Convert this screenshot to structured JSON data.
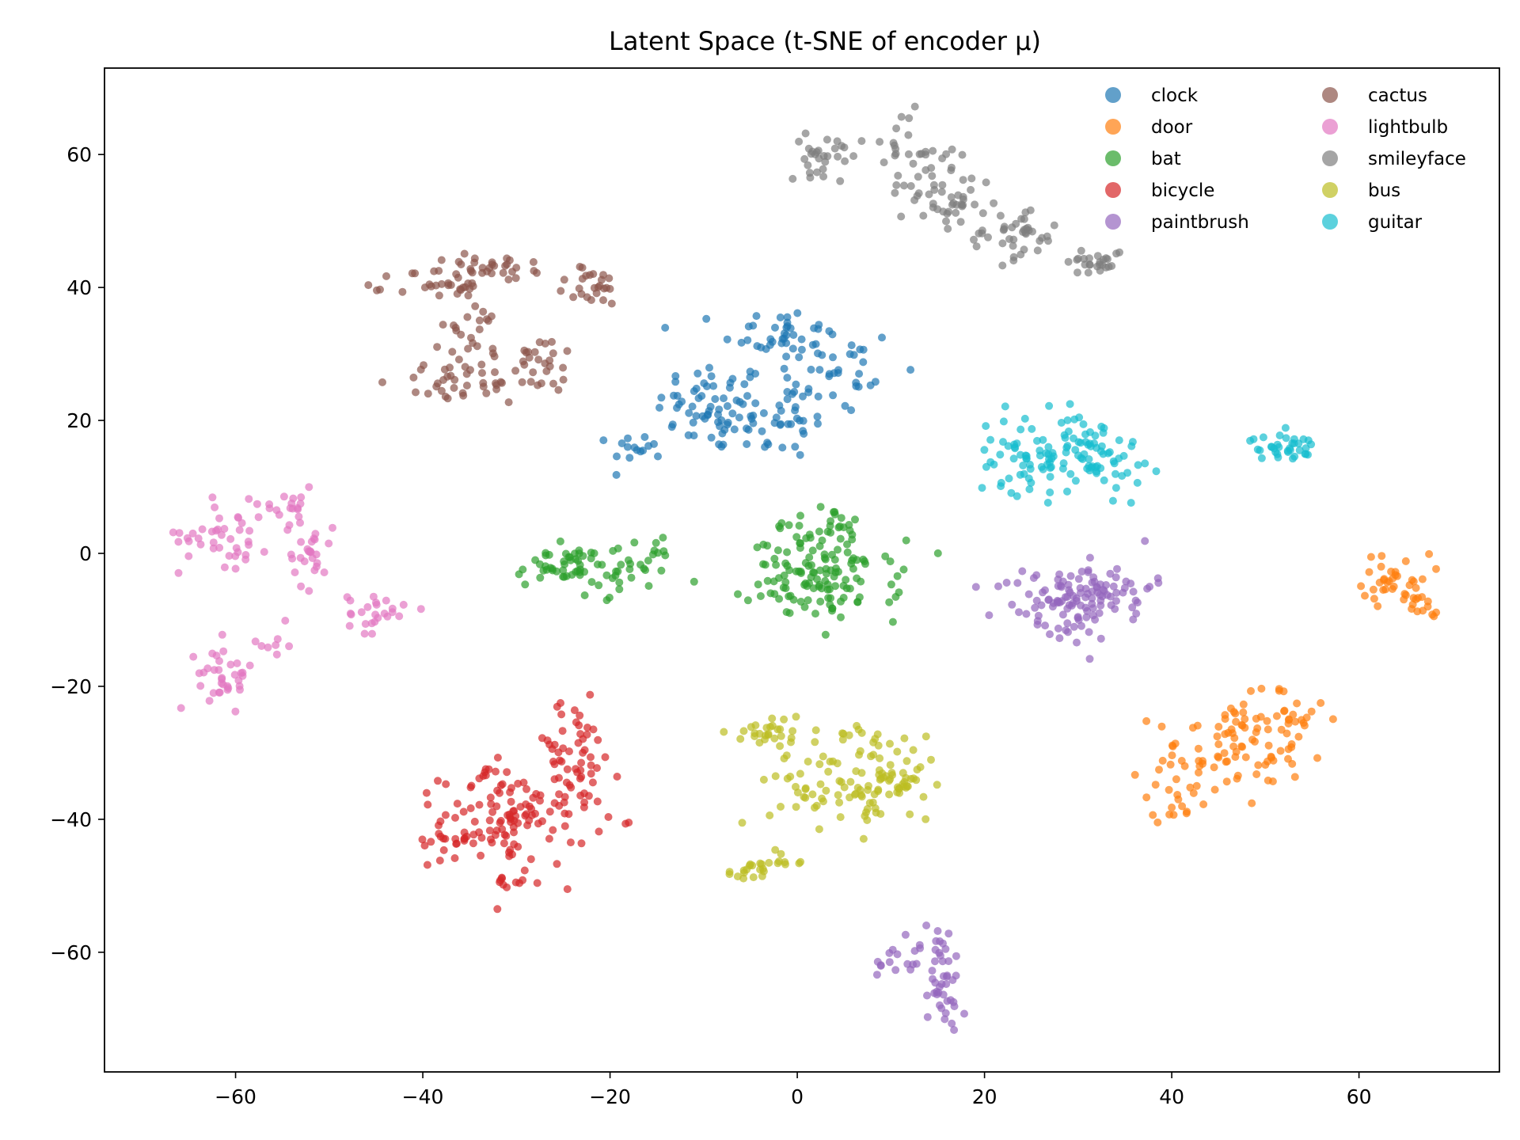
{
  "chart_data": {
    "type": "scatter",
    "title": "Latent Space (t-SNE of encoder μ)",
    "xlabel": "",
    "ylabel": "",
    "xlim": [
      -74,
      75
    ],
    "ylim": [
      -78,
      73
    ],
    "x_ticks": [
      -60,
      -40,
      -20,
      0,
      20,
      40,
      60
    ],
    "y_ticks": [
      -60,
      -40,
      -20,
      0,
      20,
      40,
      60
    ],
    "x_tick_labels": [
      "−60",
      "−40",
      "−20",
      "0",
      "20",
      "40",
      "60"
    ],
    "y_tick_labels": [
      "−60",
      "−40",
      "−20",
      "0",
      "20",
      "40",
      "60"
    ],
    "grid": false,
    "legend_position": "top-right",
    "legend_columns": 2,
    "series": [
      {
        "name": "clock",
        "color": "#1f77b4",
        "clusters": [
          {
            "x": -9,
            "y": 22,
            "sx": 3,
            "sy": 3.5,
            "n": 60
          },
          {
            "x": -2,
            "y": 33,
            "sx": 3,
            "sy": 2,
            "n": 40
          },
          {
            "x": 4,
            "y": 27,
            "sx": 3.5,
            "sy": 4,
            "n": 35
          },
          {
            "x": -2,
            "y": 20,
            "sx": 3,
            "sy": 3,
            "n": 40
          },
          {
            "x": -17,
            "y": 16,
            "sx": 1.5,
            "sy": 1,
            "n": 15
          }
        ]
      },
      {
        "name": "door",
        "color": "#ff7f0e",
        "clusters": [
          {
            "x": 46,
            "y": -30,
            "sx": 4,
            "sy": 4,
            "n": 80
          },
          {
            "x": 52,
            "y": -25,
            "sx": 2.5,
            "sy": 2.5,
            "n": 30
          },
          {
            "x": 40,
            "y": -37,
            "sx": 2,
            "sy": 1.5,
            "n": 15
          },
          {
            "x": 64,
            "y": -4,
            "sx": 1.8,
            "sy": 2,
            "n": 35
          },
          {
            "x": 66.5,
            "y": -8,
            "sx": 1,
            "sy": 1.2,
            "n": 12
          }
        ]
      },
      {
        "name": "bat",
        "color": "#2ca02c",
        "clusters": [
          {
            "x": -25,
            "y": -2,
            "sx": 2.5,
            "sy": 1.5,
            "n": 45
          },
          {
            "x": -18,
            "y": -2,
            "sx": 2.5,
            "sy": 2,
            "n": 35
          },
          {
            "x": 3,
            "y": -4,
            "sx": 4,
            "sy": 3,
            "n": 120
          },
          {
            "x": 2,
            "y": 4,
            "sx": 2.5,
            "sy": 1.5,
            "n": 30
          }
        ]
      },
      {
        "name": "bicycle",
        "color": "#d62728",
        "clusters": [
          {
            "x": -30,
            "y": -40,
            "sx": 4,
            "sy": 3.5,
            "n": 110
          },
          {
            "x": -24,
            "y": -30,
            "sx": 2.5,
            "sy": 4,
            "n": 50
          },
          {
            "x": -37,
            "y": -43,
            "sx": 1.2,
            "sy": 2,
            "n": 15
          },
          {
            "x": -30,
            "y": -49.5,
            "sx": 1.5,
            "sy": 0.3,
            "n": 10
          },
          {
            "x": -33,
            "y": -33,
            "sx": 1.2,
            "sy": 1,
            "n": 10
          }
        ]
      },
      {
        "name": "paintbrush",
        "color": "#9467bd",
        "clusters": [
          {
            "x": 28,
            "y": -8,
            "sx": 3.5,
            "sy": 3,
            "n": 80
          },
          {
            "x": 33,
            "y": -5,
            "sx": 2.5,
            "sy": 2,
            "n": 45
          },
          {
            "x": 15,
            "y": -62,
            "sx": 1.5,
            "sy": 3.5,
            "n": 40
          },
          {
            "x": 10,
            "y": -61.5,
            "sx": 0.8,
            "sy": 1.2,
            "n": 10
          },
          {
            "x": 16,
            "y": -69,
            "sx": 0.8,
            "sy": 1.5,
            "n": 10
          }
        ]
      },
      {
        "name": "cactus",
        "color": "#8c564b",
        "clusters": [
          {
            "x": -38,
            "y": 40,
            "sx": 2.5,
            "sy": 1.5,
            "n": 30
          },
          {
            "x": -32,
            "y": 43,
            "sx": 3,
            "sy": 1,
            "n": 30
          },
          {
            "x": -22,
            "y": 40,
            "sx": 2,
            "sy": 1.5,
            "n": 25
          },
          {
            "x": -37,
            "y": 26,
            "sx": 3,
            "sy": 1.5,
            "n": 25
          },
          {
            "x": -29,
            "y": 27,
            "sx": 3,
            "sy": 2,
            "n": 30
          },
          {
            "x": -35,
            "y": 33,
            "sx": 2,
            "sy": 2,
            "n": 20
          },
          {
            "x": -27,
            "y": 30,
            "sx": 1.5,
            "sy": 1.5,
            "n": 10
          }
        ]
      },
      {
        "name": "lightbulb",
        "color": "#e377c2",
        "clusters": [
          {
            "x": -61,
            "y": 3,
            "sx": 2.5,
            "sy": 2.5,
            "n": 40
          },
          {
            "x": -55,
            "y": 7,
            "sx": 2,
            "sy": 1.5,
            "n": 20
          },
          {
            "x": -52,
            "y": 0,
            "sx": 1.2,
            "sy": 2.5,
            "n": 25
          },
          {
            "x": -45,
            "y": -9,
            "sx": 1.5,
            "sy": 1.5,
            "n": 25
          },
          {
            "x": -61,
            "y": -18,
            "sx": 1.5,
            "sy": 2.5,
            "n": 35
          },
          {
            "x": -56,
            "y": -14,
            "sx": 1.2,
            "sy": 1.5,
            "n": 8
          }
        ]
      },
      {
        "name": "smileyface",
        "color": "#7f7f7f",
        "clusters": [
          {
            "x": 3,
            "y": 60,
            "sx": 2,
            "sy": 1.5,
            "n": 30
          },
          {
            "x": 12,
            "y": 60,
            "sx": 2.5,
            "sy": 3,
            "n": 30
          },
          {
            "x": 16,
            "y": 53,
            "sx": 2.5,
            "sy": 2,
            "n": 40
          },
          {
            "x": 23,
            "y": 48,
            "sx": 2.5,
            "sy": 2,
            "n": 40
          },
          {
            "x": 32,
            "y": 44,
            "sx": 1.5,
            "sy": 1,
            "n": 25
          }
        ]
      },
      {
        "name": "bus",
        "color": "#bcbd22",
        "clusters": [
          {
            "x": -3,
            "y": -27,
            "sx": 2,
            "sy": 1.5,
            "n": 30
          },
          {
            "x": 3,
            "y": -35,
            "sx": 3,
            "sy": 3,
            "n": 45
          },
          {
            "x": 10,
            "y": -35,
            "sx": 2.5,
            "sy": 3,
            "n": 60
          },
          {
            "x": 7,
            "y": -28,
            "sx": 2,
            "sy": 1.5,
            "n": 15
          },
          {
            "x": -5,
            "y": -48,
            "sx": 1.2,
            "sy": 0.8,
            "n": 18
          },
          {
            "x": -1,
            "y": -46,
            "sx": 1,
            "sy": 1,
            "n": 8
          }
        ]
      },
      {
        "name": "guitar",
        "color": "#17becf",
        "clusters": [
          {
            "x": 25,
            "y": 15,
            "sx": 3,
            "sy": 3,
            "n": 70
          },
          {
            "x": 32,
            "y": 15,
            "sx": 2.5,
            "sy": 3,
            "n": 60
          },
          {
            "x": 52,
            "y": 16,
            "sx": 1.8,
            "sy": 1,
            "n": 35
          }
        ]
      }
    ]
  }
}
